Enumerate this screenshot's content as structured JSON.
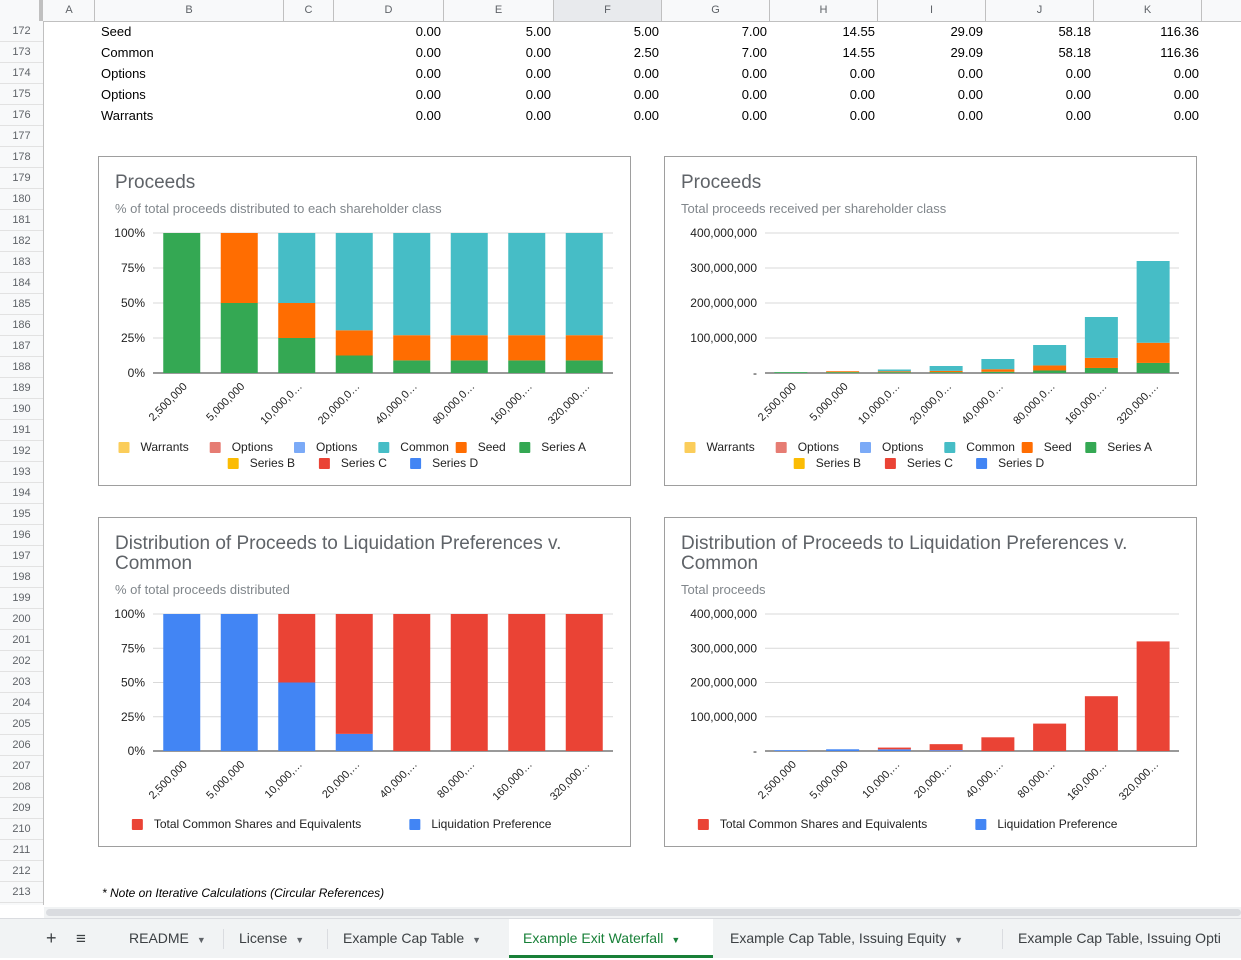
{
  "column_headers": [
    "A",
    "B",
    "C",
    "D",
    "E",
    "F",
    "G",
    "H",
    "I",
    "J",
    "K"
  ],
  "row_numbers": [
    "172",
    "173",
    "174",
    "175",
    "176",
    "177",
    "178",
    "179",
    "180",
    "181",
    "182",
    "183",
    "184",
    "185",
    "186",
    "187",
    "188",
    "189",
    "190",
    "191",
    "192",
    "193",
    "194",
    "195",
    "196",
    "197",
    "198",
    "199",
    "200",
    "201",
    "202",
    "203",
    "204",
    "205",
    "206",
    "207",
    "208",
    "209",
    "210",
    "211",
    "212",
    "213"
  ],
  "table_rows": [
    {
      "label": "Seed",
      "values": [
        "0.00",
        "5.00",
        "5.00",
        "7.00",
        "14.55",
        "29.09",
        "58.18",
        "116.36"
      ]
    },
    {
      "label": "Common",
      "values": [
        "0.00",
        "0.00",
        "2.50",
        "7.00",
        "14.55",
        "29.09",
        "58.18",
        "116.36"
      ]
    },
    {
      "label": "Options",
      "values": [
        "0.00",
        "0.00",
        "0.00",
        "0.00",
        "0.00",
        "0.00",
        "0.00",
        "0.00"
      ]
    },
    {
      "label": "Options",
      "values": [
        "0.00",
        "0.00",
        "0.00",
        "0.00",
        "0.00",
        "0.00",
        "0.00",
        "0.00"
      ]
    },
    {
      "label": "Warrants",
      "values": [
        "0.00",
        "0.00",
        "0.00",
        "0.00",
        "0.00",
        "0.00",
        "0.00",
        "0.00"
      ]
    }
  ],
  "colors": {
    "warrants": "#fbcd5a",
    "options1": "#e67c73",
    "options2": "#7baaf7",
    "common": "#46bdc6",
    "seed": "#ff6d01",
    "series_a": "#34a853",
    "series_b": "#fbbc04",
    "series_c": "#ea4335",
    "series_d": "#4285f4"
  },
  "charts": [
    {
      "title": "Proceeds",
      "subtitle": "% of total proceeds distributed to each shareholder class",
      "chart_data": {
        "type": "bar",
        "stacked": "percent",
        "categories": [
          "2,500,000",
          "5,000,000",
          "10,000,0…",
          "20,000,0…",
          "40,000,0…",
          "80,000,0…",
          "160,000,…",
          "320,000,…"
        ],
        "y_ticks": [
          "0%",
          "25%",
          "50%",
          "75%",
          "100%"
        ],
        "ylim": [
          0,
          100
        ],
        "series": [
          {
            "name": "Series A",
            "color": "#34a853",
            "values": [
              100,
              50,
              25,
              12.5,
              9,
              9,
              9,
              9
            ]
          },
          {
            "name": "Seed",
            "color": "#ff6d01",
            "values": [
              0,
              50,
              25,
              18,
              18,
              18,
              18,
              18
            ]
          },
          {
            "name": "Common",
            "color": "#46bdc6",
            "values": [
              0,
              0,
              50,
              69.5,
              73,
              73,
              73,
              73
            ]
          }
        ],
        "legend_row1": [
          {
            "name": "Warrants",
            "color": "#fbcd5a"
          },
          {
            "name": "Options",
            "color": "#e67c73"
          },
          {
            "name": "Options",
            "color": "#7baaf7"
          },
          {
            "name": "Common",
            "color": "#46bdc6"
          },
          {
            "name": "Seed",
            "color": "#ff6d01"
          },
          {
            "name": "Series A",
            "color": "#34a853"
          }
        ],
        "legend_row2": [
          {
            "name": "Series B",
            "color": "#fbbc04"
          },
          {
            "name": "Series C",
            "color": "#ea4335"
          },
          {
            "name": "Series D",
            "color": "#4285f4"
          }
        ],
        "legend_position": "bottom"
      }
    },
    {
      "title": "Proceeds",
      "subtitle": "Total proceeds received per shareholder class",
      "chart_data": {
        "type": "bar",
        "stacked": "absolute",
        "categories": [
          "2,500,000",
          "5,000,000",
          "10,000,0…",
          "20,000,0…",
          "40,000,0…",
          "80,000,0…",
          "160,000,…",
          "320,000,…"
        ],
        "y_ticks": [
          "-",
          "100,000,000",
          "200,000,000",
          "300,000,000",
          "400,000,000"
        ],
        "ylim": [
          0,
          400000000
        ],
        "series": [
          {
            "name": "Series A",
            "color": "#34a853",
            "values": [
              2500000,
              2500000,
              2500000,
              2500000,
              3600000,
              7200000,
              14400000,
              28800000
            ]
          },
          {
            "name": "Seed",
            "color": "#ff6d01",
            "values": [
              0,
              2500000,
              2500000,
              3600000,
              7200000,
              14400000,
              28800000,
              57600000
            ]
          },
          {
            "name": "Common",
            "color": "#46bdc6",
            "values": [
              0,
              0,
              5000000,
              13900000,
              29200000,
              58400000,
              116800000,
              233600000
            ]
          }
        ],
        "legend_row1": [
          {
            "name": "Warrants",
            "color": "#fbcd5a"
          },
          {
            "name": "Options",
            "color": "#e67c73"
          },
          {
            "name": "Options",
            "color": "#7baaf7"
          },
          {
            "name": "Common",
            "color": "#46bdc6"
          },
          {
            "name": "Seed",
            "color": "#ff6d01"
          },
          {
            "name": "Series A",
            "color": "#34a853"
          }
        ],
        "legend_row2": [
          {
            "name": "Series B",
            "color": "#fbbc04"
          },
          {
            "name": "Series C",
            "color": "#ea4335"
          },
          {
            "name": "Series D",
            "color": "#4285f4"
          }
        ],
        "legend_position": "bottom"
      }
    },
    {
      "title": "Distribution of Proceeds to Liquidation Preferences v. Common",
      "subtitle": "% of total proceeds distributed",
      "chart_data": {
        "type": "bar",
        "stacked": "percent",
        "categories": [
          "2,500,000",
          "5,000,000",
          "10,000,…",
          "20,000,…",
          "40,000,…",
          "80,000,…",
          "160,000…",
          "320,000…"
        ],
        "y_ticks": [
          "0%",
          "25%",
          "50%",
          "75%",
          "100%"
        ],
        "ylim": [
          0,
          100
        ],
        "series": [
          {
            "name": "Liquidation Preference",
            "color": "#4285f4",
            "values": [
              100,
              100,
              50,
              12.5,
              0,
              0,
              0,
              0
            ]
          },
          {
            "name": "Total Common Shares and Equivalents",
            "color": "#ea4335",
            "values": [
              0,
              0,
              50,
              87.5,
              100,
              100,
              100,
              100
            ]
          }
        ],
        "legend_row1": [
          {
            "name": "Total Common Shares and Equivalents",
            "color": "#ea4335"
          },
          {
            "name": "Liquidation Preference",
            "color": "#4285f4"
          }
        ],
        "legend_row2": [],
        "legend_position": "bottom"
      }
    },
    {
      "title": "Distribution of Proceeds to Liquidation Preferences v. Common",
      "subtitle": "Total proceeds",
      "chart_data": {
        "type": "bar",
        "stacked": "absolute",
        "categories": [
          "2,500,000",
          "5,000,000",
          "10,000,…",
          "20,000,…",
          "40,000,…",
          "80,000,…",
          "160,000…",
          "320,000…"
        ],
        "y_ticks": [
          "-",
          "100,000,000",
          "200,000,000",
          "300,000,000",
          "400,000,000"
        ],
        "ylim": [
          0,
          400000000
        ],
        "series": [
          {
            "name": "Liquidation Preference",
            "color": "#4285f4",
            "values": [
              2500000,
              5000000,
              5000000,
              2500000,
              0,
              0,
              0,
              0
            ]
          },
          {
            "name": "Total Common Shares and Equivalents",
            "color": "#ea4335",
            "values": [
              0,
              0,
              5000000,
              17500000,
              40000000,
              80000000,
              160000000,
              320000000
            ]
          }
        ],
        "legend_row1": [
          {
            "name": "Total Common Shares and Equivalents",
            "color": "#ea4335"
          },
          {
            "name": "Liquidation Preference",
            "color": "#4285f4"
          }
        ],
        "legend_row2": [],
        "legend_position": "bottom"
      }
    }
  ],
  "note": "* Note on Iterative Calculations (Circular References)",
  "tabs": [
    "README",
    "License",
    "Example Cap Table",
    "Example Exit Waterfall",
    "Example Cap Table, Issuing Equity",
    "Example Cap Table, Issuing Opti"
  ],
  "active_tab": "Example Exit Waterfall",
  "toolbar": {
    "add_icon": "+",
    "list_icon": "≡"
  }
}
